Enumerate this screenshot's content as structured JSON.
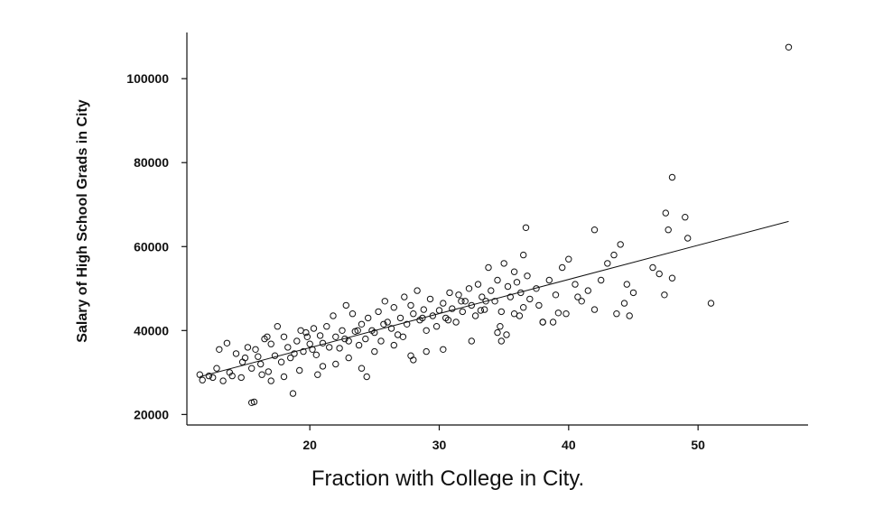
{
  "chart_data": {
    "type": "scatter",
    "xlabel": "Fraction with College in City.",
    "ylabel": "Salary of High School Grads in City",
    "xlim": [
      10.5,
      58.5
    ],
    "ylim": [
      17500,
      111000
    ],
    "x_ticks": [
      20,
      30,
      40,
      50
    ],
    "y_ticks": [
      20000,
      40000,
      60000,
      80000,
      100000
    ],
    "x_tick_labels": [
      "20",
      "30",
      "40",
      "50"
    ],
    "y_tick_labels": [
      "20000",
      "40000",
      "60000",
      "80000",
      "100000"
    ],
    "grid": false,
    "fit_line": {
      "x": [
        11.5,
        57
      ],
      "y": [
        29000,
        66000
      ]
    },
    "series": [
      {
        "x": [
          11.5,
          11.7,
          12.2,
          12.5,
          13.0,
          13.3,
          13.6,
          14.0,
          14.3,
          14.7,
          15.0,
          15.2,
          15.5,
          15.8,
          16.0,
          16.2,
          16.5,
          16.8,
          17.0,
          17.3,
          17.5,
          17.8,
          18.0,
          18.3,
          18.5,
          18.8,
          19.0,
          19.3,
          19.5,
          19.8,
          20.0,
          20.3,
          20.5,
          20.8,
          21.0,
          21.3,
          21.5,
          21.8,
          22.0,
          22.3,
          22.5,
          22.8,
          23.0,
          23.3,
          23.5,
          23.8,
          24.0,
          24.3,
          24.5,
          24.8,
          25.0,
          25.3,
          25.5,
          25.8,
          26.0,
          26.3,
          26.5,
          26.8,
          27.0,
          27.3,
          27.5,
          27.8,
          28.0,
          28.3,
          28.5,
          28.8,
          29.0,
          29.3,
          29.5,
          29.8,
          30.0,
          30.3,
          30.5,
          30.8,
          31.0,
          31.3,
          31.5,
          31.8,
          32.0,
          32.3,
          32.5,
          32.8,
          33.0,
          33.3,
          33.5,
          33.8,
          34.0,
          34.3,
          34.5,
          34.8,
          35.0,
          35.3,
          35.5,
          35.8,
          36.0,
          36.3,
          36.5,
          36.8,
          37.0,
          37.5,
          38.0,
          38.5,
          39.0,
          39.5,
          40.0,
          40.5,
          41.0,
          41.5,
          42.0,
          42.5,
          43.0,
          43.5,
          44.0,
          44.5,
          45.0,
          46.5,
          47.0,
          47.5,
          48.0,
          49.0,
          51.0,
          57.0,
          15.5,
          15.7,
          18.7,
          20.6,
          24.0,
          24.4,
          28.0,
          30.3,
          34.8,
          35.2,
          34.5,
          36.2,
          35.8,
          38.8,
          42.0,
          44.3,
          47.4,
          48.0,
          49.2,
          47.7,
          44.7,
          39.8,
          38.0,
          36.5,
          33.6,
          32.5,
          29.0,
          27.8,
          26.5,
          25.0,
          23.0,
          22.0,
          21.0,
          19.2,
          18.0,
          17.0,
          16.3,
          14.8,
          13.8,
          12.8,
          16.7,
          19.7,
          22.7,
          25.7,
          28.7,
          31.7,
          34.7,
          37.7,
          40.7,
          43.7,
          20.2,
          23.7,
          27.2,
          30.7,
          33.2,
          36.7,
          39.2
        ],
        "y": [
          29500,
          28200,
          29200,
          28800,
          35500,
          28000,
          37000,
          29200,
          34500,
          28800,
          33500,
          36000,
          31000,
          35500,
          33800,
          32000,
          38000,
          30200,
          36800,
          34000,
          41000,
          32500,
          38500,
          36000,
          33500,
          34500,
          37500,
          40000,
          35000,
          38500,
          36800,
          40500,
          34200,
          38800,
          37000,
          41000,
          36000,
          43500,
          38500,
          35800,
          40000,
          46000,
          37500,
          44000,
          39800,
          36500,
          41500,
          38000,
          43000,
          40000,
          39500,
          44500,
          37500,
          47000,
          42000,
          40500,
          45500,
          39000,
          43000,
          48000,
          41500,
          46000,
          44000,
          49500,
          42500,
          45000,
          40000,
          47500,
          43500,
          41000,
          44800,
          46500,
          43000,
          49000,
          45200,
          42000,
          48500,
          44500,
          47000,
          50000,
          46000,
          43500,
          51000,
          48000,
          45000,
          55000,
          49500,
          47000,
          52000,
          44500,
          56000,
          50500,
          48000,
          54000,
          51500,
          49000,
          58000,
          53000,
          47500,
          50000,
          42000,
          52000,
          48500,
          55000,
          57000,
          51000,
          47000,
          49500,
          64000,
          52000,
          56000,
          58000,
          60500,
          51000,
          49000,
          55000,
          53500,
          68000,
          76500,
          67000,
          46500,
          107500,
          22800,
          23000,
          25000,
          29500,
          31000,
          29000,
          33000,
          35500,
          37500,
          39000,
          39500,
          43500,
          44000,
          42000,
          45000,
          46500,
          48500,
          52500,
          62000,
          64000,
          43500,
          44000,
          42000,
          45500,
          47000,
          37500,
          35000,
          34000,
          36500,
          35000,
          33500,
          32000,
          31500,
          30500,
          29000,
          28000,
          29500,
          32500,
          30000,
          31000,
          38500,
          39500,
          38000,
          41500,
          43000,
          47000,
          41000,
          46000,
          48000,
          44000,
          35500,
          40000,
          38500,
          42500,
          44800,
          64500,
          44200
        ]
      }
    ]
  }
}
